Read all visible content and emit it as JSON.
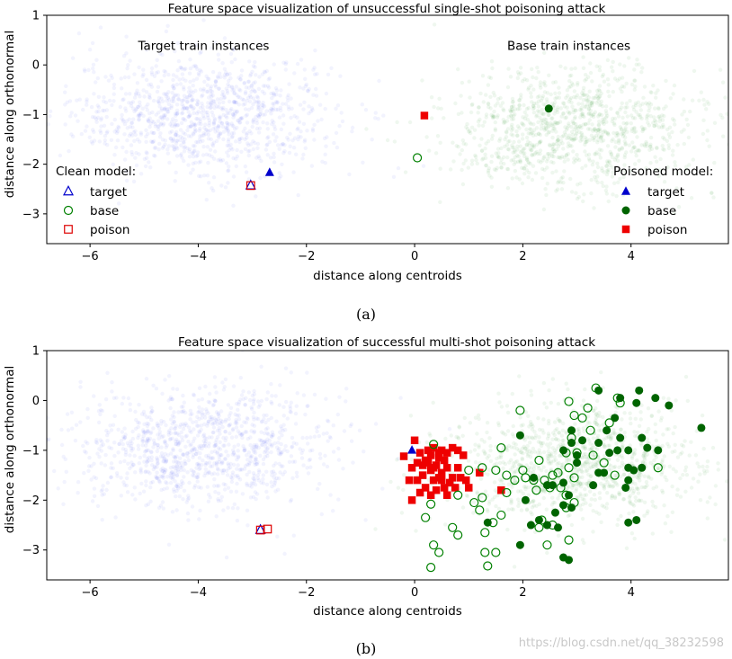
{
  "chart_data": [
    {
      "type": "scatter",
      "title": "Feature space visualization of unsuccessful single-shot poisoning attack",
      "xlabel": "distance along centroids",
      "ylabel": "distance along orthonormal",
      "xlim": [
        -6.8,
        5.8
      ],
      "ylim": [
        -3.6,
        1.0
      ],
      "xticks": [
        -6,
        -4,
        -2,
        0,
        2,
        4
      ],
      "xtick_labels": [
        "−6",
        "−4",
        "−2",
        "0",
        "2",
        "4"
      ],
      "yticks": [
        1,
        0,
        -1,
        -2,
        -3
      ],
      "ytick_labels": [
        "1",
        "0",
        "−1",
        "−2",
        "−3"
      ],
      "caption": "(a)",
      "regions": [
        {
          "label": "Target train instances",
          "x": -3.9,
          "y": 0.3
        },
        {
          "label": "Base train instances",
          "x": 2.85,
          "y": 0.3
        }
      ],
      "clouds": [
        {
          "name": "target-train",
          "color": "#4455ee",
          "cx": -3.9,
          "cy": -1.0,
          "sx": 1.2,
          "sy": 0.6,
          "n": 1100
        },
        {
          "name": "base-train",
          "color": "#228b22",
          "cx": 2.9,
          "cy": -1.3,
          "sx": 1.2,
          "sy": 0.6,
          "n": 1100
        }
      ],
      "legends": [
        {
          "title": "Clean model:",
          "items": [
            {
              "marker": "triangle-open",
              "color": "#0000cc",
              "label": "target"
            },
            {
              "marker": "circle-open",
              "color": "#008000",
              "label": "base"
            },
            {
              "marker": "square-open",
              "color": "#dd0000",
              "label": "poison"
            }
          ]
        },
        {
          "title": "Poisoned model:",
          "items": [
            {
              "marker": "triangle-filled",
              "color": "#0000cc",
              "label": "target"
            },
            {
              "marker": "circle-filled",
              "color": "#006400",
              "label": "base"
            },
            {
              "marker": "square-filled",
              "color": "#ee0000",
              "label": "poison"
            }
          ]
        }
      ],
      "series": [
        {
          "name": "clean target",
          "marker": "triangle-open",
          "color": "#0000cc",
          "points": [
            [
              -3.03,
              -2.43
            ]
          ]
        },
        {
          "name": "clean base",
          "marker": "circle-open",
          "color": "#008000",
          "points": [
            [
              0.05,
              -1.87
            ]
          ]
        },
        {
          "name": "clean poison",
          "marker": "square-open",
          "color": "#dd0000",
          "points": [
            [
              -3.03,
              -2.43
            ]
          ]
        },
        {
          "name": "poisoned target",
          "marker": "triangle-filled",
          "color": "#0000cc",
          "points": [
            [
              -2.68,
              -2.17
            ]
          ]
        },
        {
          "name": "poisoned base",
          "marker": "circle-filled",
          "color": "#006400",
          "points": [
            [
              2.48,
              -0.88
            ]
          ]
        },
        {
          "name": "poisoned poison",
          "marker": "square-filled",
          "color": "#ee0000",
          "points": [
            [
              0.18,
              -1.02
            ]
          ]
        }
      ]
    },
    {
      "type": "scatter",
      "title": "Feature space visualization of successful multi-shot poisoning attack",
      "xlabel": "distance along centroids",
      "ylabel": "distance along orthonormal",
      "xlim": [
        -6.8,
        5.8
      ],
      "ylim": [
        -3.6,
        1.0
      ],
      "xticks": [
        -6,
        -4,
        -2,
        0,
        2,
        4
      ],
      "xtick_labels": [
        "−6",
        "−4",
        "−2",
        "0",
        "2",
        "4"
      ],
      "yticks": [
        1,
        0,
        -1,
        -2,
        -3
      ],
      "ytick_labels": [
        "1",
        "0",
        "−1",
        "−2",
        "−3"
      ],
      "caption": "(b)",
      "regions": [],
      "clouds": [
        {
          "name": "target-train",
          "color": "#4455ee",
          "cx": -3.9,
          "cy": -0.95,
          "sx": 1.2,
          "sy": 0.6,
          "n": 1100
        },
        {
          "name": "base-train",
          "color": "#228b22",
          "cx": 2.9,
          "cy": -1.3,
          "sx": 1.2,
          "sy": 0.6,
          "n": 1100
        }
      ],
      "legends": [],
      "series": [
        {
          "name": "clean target",
          "marker": "triangle-open",
          "color": "#0000cc",
          "points": [
            [
              -2.85,
              -2.6
            ]
          ]
        },
        {
          "name": "clean poison",
          "marker": "square-open",
          "color": "#dd0000",
          "points": [
            [
              -2.85,
              -2.6
            ],
            [
              -2.72,
              -2.58
            ]
          ]
        },
        {
          "name": "poisoned target",
          "marker": "triangle-filled",
          "color": "#0000cc",
          "points": [
            [
              -0.05,
              -1.0
            ]
          ]
        },
        {
          "name": "poisoned poison",
          "marker": "square-filled",
          "color": "#ee0000",
          "points": [
            [
              -0.2,
              -1.12
            ],
            [
              -0.05,
              -1.35
            ],
            [
              0.0,
              -0.8
            ],
            [
              0.1,
              -1.05
            ],
            [
              0.2,
              -1.2
            ],
            [
              0.3,
              -1.1
            ],
            [
              0.35,
              -0.95
            ],
            [
              0.4,
              -1.3
            ],
            [
              0.45,
              -1.05
            ],
            [
              0.5,
              -1.0
            ],
            [
              0.55,
              -1.2
            ],
            [
              0.6,
              -1.05
            ],
            [
              0.7,
              -0.95
            ],
            [
              0.8,
              -1.0
            ],
            [
              0.9,
              -1.1
            ],
            [
              0.3,
              -1.4
            ],
            [
              0.15,
              -1.5
            ],
            [
              0.05,
              -1.6
            ],
            [
              -0.1,
              -1.6
            ],
            [
              0.2,
              -1.75
            ],
            [
              0.35,
              -1.6
            ],
            [
              0.45,
              -1.55
            ],
            [
              0.5,
              -1.45
            ],
            [
              0.6,
              -1.35
            ],
            [
              0.7,
              -1.55
            ],
            [
              0.85,
              -1.55
            ],
            [
              0.95,
              -1.6
            ],
            [
              0.1,
              -1.85
            ],
            [
              -0.05,
              -2.0
            ],
            [
              0.3,
              -1.9
            ],
            [
              0.4,
              -1.8
            ],
            [
              0.55,
              -1.75
            ],
            [
              0.65,
              -1.65
            ],
            [
              0.75,
              -1.75
            ],
            [
              0.25,
              -1.25
            ],
            [
              0.5,
              -1.6
            ],
            [
              0.05,
              -1.25
            ],
            [
              0.35,
              -1.35
            ],
            [
              0.6,
              -1.9
            ],
            [
              0.8,
              -1.35
            ],
            [
              0.25,
              -1.0
            ],
            [
              1.0,
              -1.75
            ],
            [
              1.2,
              -1.45
            ],
            [
              1.6,
              -1.8
            ],
            [
              0.45,
              -1.15
            ],
            [
              0.15,
              -1.3
            ]
          ]
        },
        {
          "name": "clean base",
          "marker": "circle-open",
          "color": "#008000",
          "points": [
            [
              0.35,
              -0.88
            ],
            [
              0.3,
              -2.08
            ],
            [
              0.8,
              -1.9
            ],
            [
              1.1,
              -2.05
            ],
            [
              0.2,
              -2.35
            ],
            [
              0.7,
              -2.55
            ],
            [
              0.8,
              -2.7
            ],
            [
              0.35,
              -2.9
            ],
            [
              0.45,
              -3.05
            ],
            [
              0.3,
              -3.35
            ],
            [
              1.3,
              -2.65
            ],
            [
              1.45,
              -2.45
            ],
            [
              1.2,
              -2.2
            ],
            [
              1.6,
              -2.3
            ],
            [
              1.3,
              -3.05
            ],
            [
              1.5,
              -3.05
            ],
            [
              1.35,
              -3.32
            ],
            [
              1.0,
              -1.4
            ],
            [
              1.25,
              -1.35
            ],
            [
              1.5,
              -1.4
            ],
            [
              1.7,
              -1.5
            ],
            [
              1.85,
              -1.6
            ],
            [
              1.7,
              -1.85
            ],
            [
              2.05,
              -1.55
            ],
            [
              2.2,
              -1.6
            ],
            [
              2.25,
              -1.8
            ],
            [
              2.4,
              -1.6
            ],
            [
              2.55,
              -1.5
            ],
            [
              2.5,
              -1.75
            ],
            [
              2.65,
              -1.45
            ],
            [
              2.85,
              -1.35
            ],
            [
              2.95,
              -1.55
            ],
            [
              2.7,
              -1.75
            ],
            [
              2.8,
              -1.9
            ],
            [
              2.95,
              -2.05
            ],
            [
              2.35,
              -2.4
            ],
            [
              2.55,
              -2.5
            ],
            [
              2.3,
              -2.55
            ],
            [
              2.45,
              -2.9
            ],
            [
              2.85,
              -2.8
            ],
            [
              2.8,
              -2.15
            ],
            [
              1.25,
              -1.95
            ],
            [
              2.0,
              -1.4
            ],
            [
              2.8,
              -1.05
            ],
            [
              3.0,
              -1.05
            ],
            [
              2.9,
              -0.75
            ],
            [
              3.25,
              -0.6
            ],
            [
              2.95,
              -0.3
            ],
            [
              3.1,
              -0.35
            ],
            [
              3.35,
              0.25
            ],
            [
              3.75,
              0.05
            ],
            [
              3.8,
              -0.05
            ],
            [
              3.6,
              -0.45
            ],
            [
              1.95,
              -0.2
            ],
            [
              2.85,
              -0.02
            ],
            [
              3.2,
              -0.15
            ],
            [
              4.5,
              -1.35
            ],
            [
              3.5,
              -1.25
            ],
            [
              3.7,
              -1.5
            ],
            [
              3.3,
              -1.1
            ],
            [
              1.6,
              -0.95
            ],
            [
              2.3,
              -1.2
            ]
          ]
        },
        {
          "name": "poisoned base",
          "marker": "circle-filled",
          "color": "#006400",
          "points": [
            [
              3.4,
              0.2
            ],
            [
              3.8,
              0.05
            ],
            [
              4.15,
              0.2
            ],
            [
              4.1,
              -0.05
            ],
            [
              4.45,
              0.05
            ],
            [
              4.7,
              -0.1
            ],
            [
              3.7,
              -0.35
            ],
            [
              3.55,
              -0.6
            ],
            [
              5.3,
              -0.55
            ],
            [
              1.95,
              -0.7
            ],
            [
              2.9,
              -0.6
            ],
            [
              2.9,
              -0.85
            ],
            [
              3.1,
              -0.8
            ],
            [
              3.4,
              -0.85
            ],
            [
              3.8,
              -0.75
            ],
            [
              4.2,
              -0.75
            ],
            [
              4.3,
              -0.95
            ],
            [
              3.75,
              -1.0
            ],
            [
              3.95,
              -1.0
            ],
            [
              4.5,
              -1.0
            ],
            [
              2.75,
              -1.0
            ],
            [
              3.0,
              -1.1
            ],
            [
              3.4,
              -1.45
            ],
            [
              3.5,
              -1.45
            ],
            [
              3.95,
              -1.35
            ],
            [
              4.05,
              -1.4
            ],
            [
              4.2,
              -1.35
            ],
            [
              3.95,
              -1.6
            ],
            [
              3.9,
              -1.75
            ],
            [
              3.3,
              -1.7
            ],
            [
              2.75,
              -1.65
            ],
            [
              2.55,
              -1.7
            ],
            [
              2.2,
              -1.55
            ],
            [
              2.45,
              -1.7
            ],
            [
              2.85,
              -1.9
            ],
            [
              2.75,
              -2.1
            ],
            [
              2.9,
              -2.15
            ],
            [
              2.6,
              -2.25
            ],
            [
              2.05,
              -2.0
            ],
            [
              2.3,
              -2.4
            ],
            [
              2.15,
              -2.5
            ],
            [
              2.45,
              -2.5
            ],
            [
              2.65,
              -2.55
            ],
            [
              3.95,
              -2.45
            ],
            [
              4.1,
              -2.4
            ],
            [
              1.95,
              -2.9
            ],
            [
              1.35,
              -2.45
            ],
            [
              2.75,
              -3.15
            ],
            [
              2.85,
              -3.2
            ],
            [
              3.0,
              -1.25
            ],
            [
              3.6,
              -1.05
            ]
          ]
        }
      ]
    }
  ],
  "watermark": "https://blog.csdn.net/qq_38232598"
}
